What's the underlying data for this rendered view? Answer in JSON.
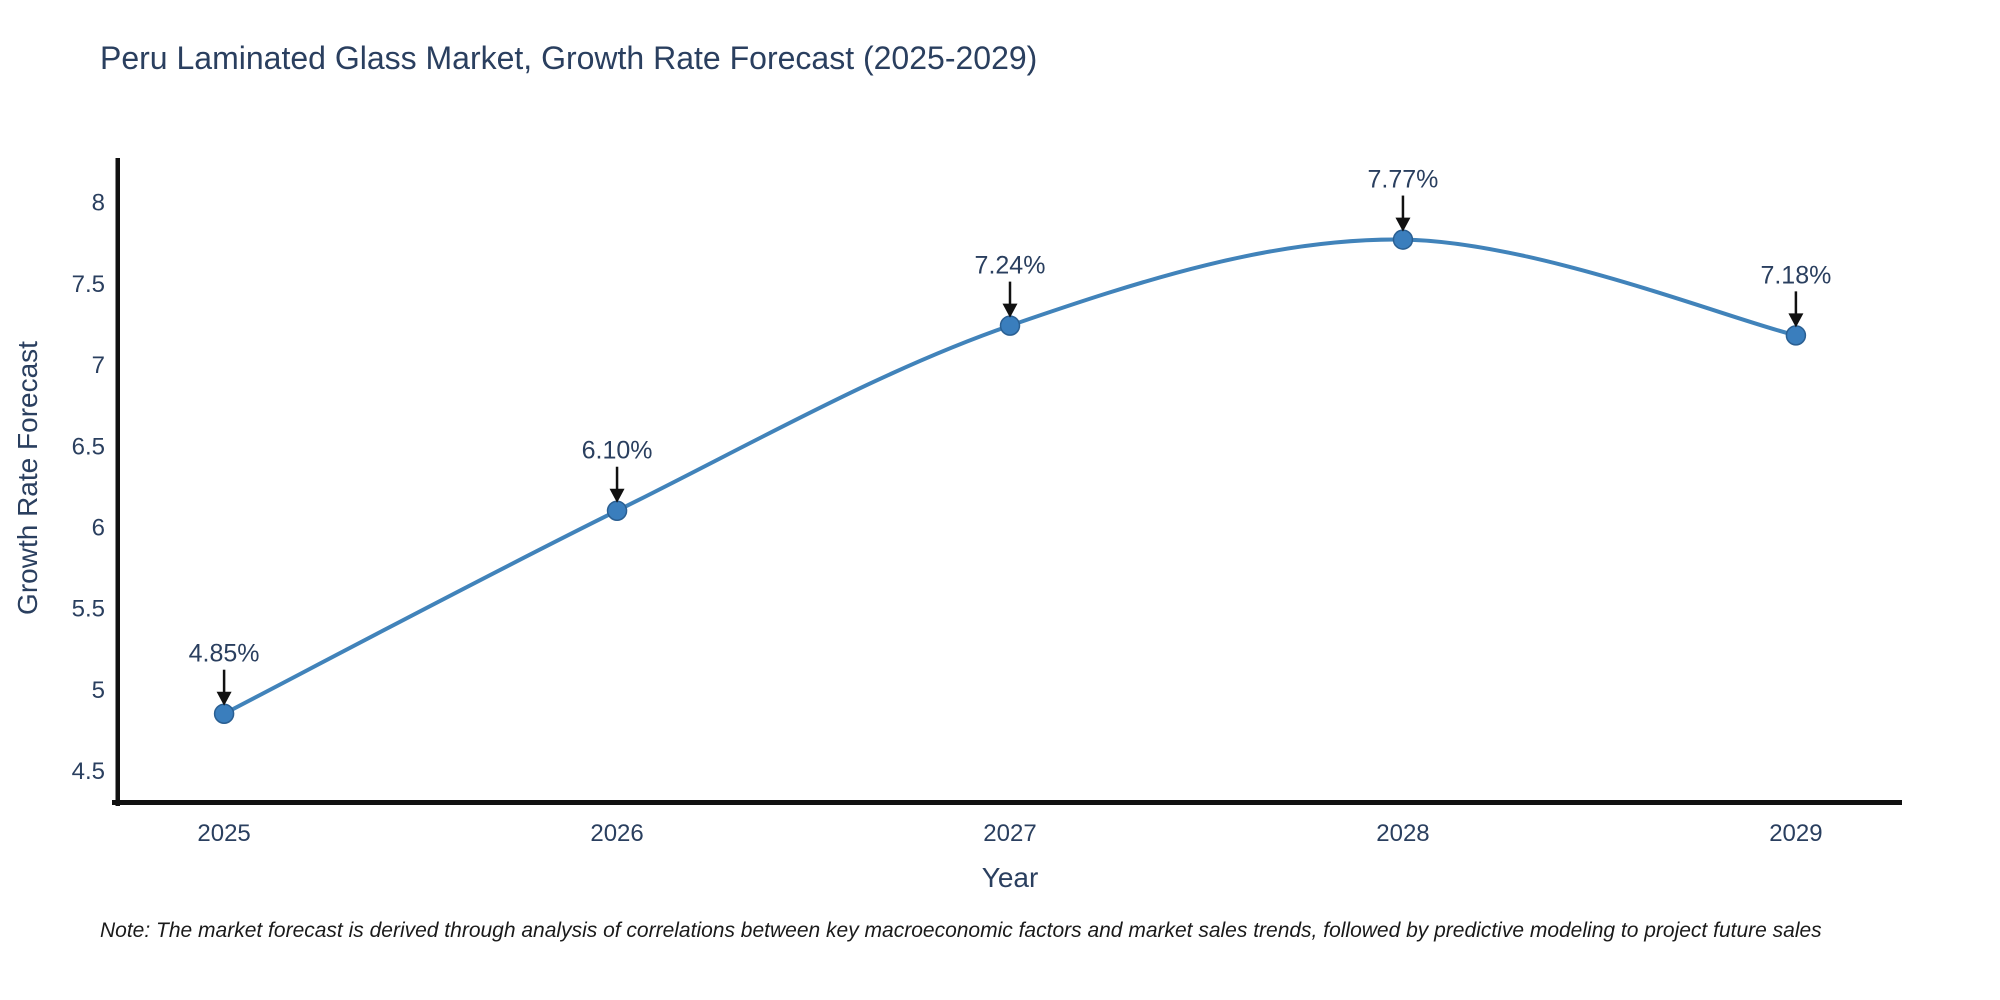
{
  "chart_data": {
    "type": "line",
    "title": "Peru Laminated Glass Market, Growth Rate Forecast (2025-2029)",
    "xlabel": "Year",
    "ylabel": "Growth Rate Forecast",
    "note": "Note: The market forecast is derived through analysis of correlations between key macroeconomic factors and market sales trends, followed by predictive modeling to project future sales",
    "x": [
      2025,
      2026,
      2027,
      2028,
      2029
    ],
    "values": [
      4.85,
      6.1,
      7.24,
      7.77,
      7.18
    ],
    "point_labels": [
      "4.85%",
      "6.10%",
      "7.24%",
      "7.77%",
      "7.18%"
    ],
    "xticks": [
      "2025",
      "2026",
      "2027",
      "2028",
      "2029"
    ],
    "yticks": [
      4.5,
      5,
      5.5,
      6,
      6.5,
      7,
      7.5,
      8
    ],
    "xlim": [
      2024.73,
      2029.27
    ],
    "ylim": [
      4.3,
      8.26
    ],
    "grid": false,
    "legend": false,
    "line_shape": "spline",
    "colors": {
      "line": "#4183ba",
      "marker": "#3a7ebd",
      "marker_edge": "#2a5f92",
      "axis": "#111111",
      "tick_text": "#2a3f5f",
      "annotation_text": "#2a3f5f",
      "arrow": "#111111"
    }
  }
}
